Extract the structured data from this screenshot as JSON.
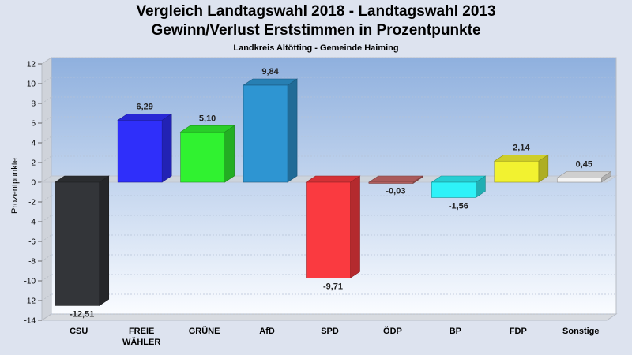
{
  "chart_data": {
    "type": "bar",
    "title": "Vergleich Landtagswahl 2018 - Landtagswahl 2013",
    "subtitle": "Gewinn/Verlust Erststimmen in Prozentpunkte",
    "caption": "Landkreis Altötting - Gemeinde Haiming",
    "ylabel": "Prozentpunkte",
    "ylim": [
      -14,
      12
    ],
    "yticks": [
      12,
      10,
      8,
      6,
      4,
      2,
      0,
      -2,
      -4,
      -6,
      -8,
      -10,
      -12,
      -14
    ],
    "grid": true,
    "categories": [
      {
        "lines": [
          "CSU"
        ]
      },
      {
        "lines": [
          "FREIE",
          "WÄHLER"
        ]
      },
      {
        "lines": [
          "GRÜNE"
        ]
      },
      {
        "lines": [
          "AfD"
        ]
      },
      {
        "lines": [
          "SPD"
        ]
      },
      {
        "lines": [
          "ÖDP"
        ]
      },
      {
        "lines": [
          "BP"
        ]
      },
      {
        "lines": [
          "FDP"
        ]
      },
      {
        "lines": [
          "Sonstige"
        ]
      }
    ],
    "values": [
      -12.51,
      6.29,
      5.1,
      9.84,
      -9.71,
      -0.03,
      -1.56,
      2.14,
      0.45
    ],
    "labels": [
      "-12,51",
      "6,29",
      "5,10",
      "9,84",
      "-9,71",
      "-0,03",
      "-1,56",
      "2,14",
      "0,45"
    ],
    "colors": [
      "#333539",
      "#2f2ffa",
      "#30f230",
      "#2e95d2",
      "#fa3a40",
      "#c86a6a",
      "#2ef2f8",
      "#f2f230",
      "#f4f4f4"
    ]
  }
}
